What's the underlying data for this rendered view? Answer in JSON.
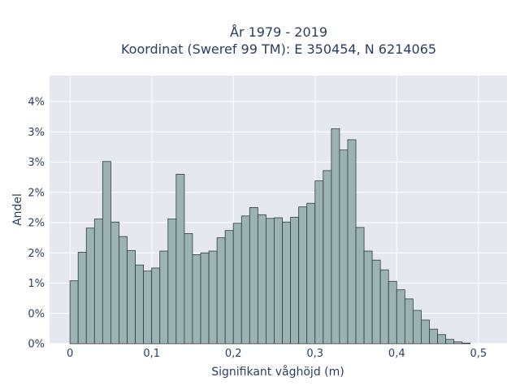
{
  "chart_data": {
    "type": "bar",
    "title_line1": "År 1979 - 2019",
    "title_line2": "Koordinat (Sweref 99 TM): E 350454, N 6214065",
    "xlabel": "Signifikant våghöjd (m)",
    "ylabel": "Andel",
    "bin_width": 0.01,
    "bin_start": 0,
    "xlim": [
      -0.025,
      0.535
    ],
    "ylim": [
      0,
      0.0443
    ],
    "x_ticks": [
      {
        "value": 0,
        "label": "0"
      },
      {
        "value": 0.1,
        "label": "0,1"
      },
      {
        "value": 0.2,
        "label": "0,2"
      },
      {
        "value": 0.3,
        "label": "0,3"
      },
      {
        "value": 0.4,
        "label": "0,4"
      },
      {
        "value": 0.5,
        "label": "0,5"
      }
    ],
    "y_ticks": [
      {
        "value": 0,
        "label": "0%"
      },
      {
        "value": 0.005,
        "label": "0%"
      },
      {
        "value": 0.01,
        "label": "1%"
      },
      {
        "value": 0.015,
        "label": "2%"
      },
      {
        "value": 0.02,
        "label": "2%"
      },
      {
        "value": 0.025,
        "label": "2%"
      },
      {
        "value": 0.03,
        "label": "3%"
      },
      {
        "value": 0.035,
        "label": "3%"
      },
      {
        "value": 0.04,
        "label": "4%"
      }
    ],
    "values": [
      0.0104,
      0.0151,
      0.0191,
      0.0206,
      0.0301,
      0.0201,
      0.0177,
      0.0154,
      0.013,
      0.012,
      0.0125,
      0.0153,
      0.0206,
      0.028,
      0.0182,
      0.0147,
      0.015,
      0.0153,
      0.0175,
      0.0187,
      0.0199,
      0.0211,
      0.0225,
      0.0213,
      0.0207,
      0.0208,
      0.0201,
      0.0209,
      0.0226,
      0.0232,
      0.0269,
      0.0286,
      0.0355,
      0.032,
      0.0337,
      0.0192,
      0.0153,
      0.0138,
      0.0122,
      0.0103,
      0.0089,
      0.0074,
      0.0055,
      0.0039,
      0.0024,
      0.0015,
      0.0007,
      0.0003,
      0.0001
    ],
    "grid": true,
    "legend": "none",
    "colors": {
      "plot_bg": "#e5e8ef",
      "grid": "#ffffff",
      "bar_fill": "#9bb3b2",
      "bar_stroke": "#2f3e3d",
      "text": "#2a3f5f"
    }
  }
}
